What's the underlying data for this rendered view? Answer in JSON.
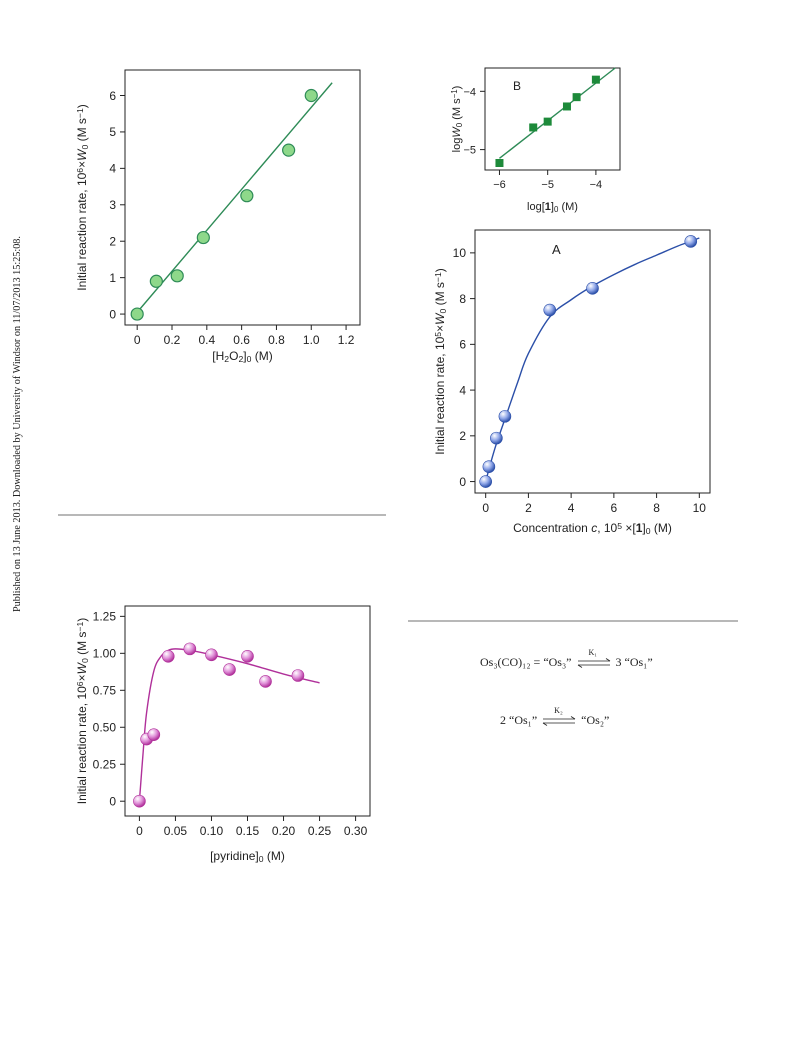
{
  "page": {
    "sidebar_text": "Published on 13 June 2013. Downloaded by University of Windsor on 11/07/2013 15:25:08."
  },
  "colors": {
    "green_line": "#2e8b57",
    "green_marker": "#8ed88a",
    "green_square": "#1d8a3a",
    "blue_line": "#2b4fa8",
    "blue_marker": "#8fa6e8",
    "pink_line": "#b0309a",
    "pink_marker": "#e090d8",
    "rule": "#b8b8b8"
  },
  "chart_data": [
    {
      "id": "h2o2",
      "type": "scatter",
      "title": "",
      "xlabel": "[H2O2]0 (M)",
      "ylabel": "Initial reaction rate, 10⁶×W₀ (M s⁻¹)",
      "xlim": [
        -0.07,
        1.28
      ],
      "ylim": [
        -0.3,
        6.7
      ],
      "xticks": [
        0,
        0.2,
        0.4,
        0.6,
        0.8,
        1.0,
        1.2
      ],
      "xtick_labels": [
        "0",
        "0.2",
        "0.4",
        "0.6",
        "0.8",
        "1.0",
        "1.2"
      ],
      "yticks": [
        0,
        1,
        2,
        3,
        4,
        5,
        6
      ],
      "ytick_labels": [
        "0",
        "1",
        "2",
        "3",
        "4",
        "5",
        "6"
      ],
      "x": [
        0,
        0.11,
        0.23,
        0.38,
        0.63,
        0.87,
        1.0
      ],
      "y": [
        0,
        0.9,
        1.05,
        2.1,
        3.25,
        4.5,
        6.0
      ],
      "fit_line": {
        "x": [
          0,
          1.12
        ],
        "y": [
          0.05,
          6.35
        ]
      },
      "grid": false
    },
    {
      "id": "logplot",
      "type": "scatter",
      "panel_label": "B",
      "xlabel": "log[1]0 (M)",
      "ylabel": "logW0 (M s⁻¹)",
      "xlim": [
        -6.3,
        -3.5
      ],
      "ylim": [
        -5.35,
        -3.6
      ],
      "xticks": [
        -6,
        -5,
        -4
      ],
      "xtick_labels": [
        "−6",
        "−5",
        "−4"
      ],
      "yticks": [
        -5,
        -4
      ],
      "ytick_labels": [
        "−5",
        "−4"
      ],
      "x": [
        -6.0,
        -5.3,
        -5.0,
        -4.6,
        -4.4,
        -4.0
      ],
      "y": [
        -5.23,
        -4.62,
        -4.52,
        -4.26,
        -4.1,
        -3.8
      ],
      "fit_line": {
        "x": [
          -6.0,
          -3.6
        ],
        "y": [
          -5.15,
          -3.6
        ]
      },
      "grid": false
    },
    {
      "id": "concentration",
      "type": "scatter",
      "panel_label": "A",
      "xlabel": "Concentration c, 10⁵ ×[1]0 (M)",
      "ylabel": "Initial reaction rate, 10⁵×W₀ (M s⁻¹)",
      "xlim": [
        -0.5,
        10.5
      ],
      "ylim": [
        -0.5,
        11.0
      ],
      "xticks": [
        0,
        2,
        4,
        6,
        8,
        10
      ],
      "xtick_labels": [
        "0",
        "2",
        "4",
        "6",
        "8",
        "10"
      ],
      "yticks": [
        0,
        2,
        4,
        6,
        8,
        10
      ],
      "ytick_labels": [
        "0",
        "2",
        "4",
        "6",
        "8",
        "10"
      ],
      "x": [
        0,
        0.15,
        0.5,
        0.9,
        3.0,
        5.0,
        9.6
      ],
      "y": [
        0,
        0.65,
        1.9,
        2.85,
        7.5,
        8.45,
        10.5
      ],
      "fit_curve": {
        "x": [
          0,
          0.2,
          0.5,
          1.0,
          1.5,
          2.0,
          3.0,
          4.0,
          5.0,
          6.0,
          7.0,
          8.0,
          9.0,
          10.0
        ],
        "y": [
          0,
          0.7,
          1.65,
          3.0,
          4.35,
          5.6,
          7.2,
          7.95,
          8.55,
          9.05,
          9.5,
          9.9,
          10.3,
          10.65
        ]
      },
      "grid": false
    },
    {
      "id": "pyridine",
      "type": "scatter",
      "title": "",
      "xlabel": "[pyridine]0 (M)",
      "ylabel": "Initial reaction rate, 10⁶×W₀ (M s⁻¹)",
      "xlim": [
        -0.02,
        0.32
      ],
      "ylim": [
        -0.1,
        1.32
      ],
      "xticks": [
        0,
        0.05,
        0.1,
        0.15,
        0.2,
        0.25,
        0.3
      ],
      "xtick_labels": [
        "0",
        "0.05",
        "0.10",
        "0.15",
        "0.20",
        "0.25",
        "0.30"
      ],
      "yticks": [
        0,
        0.25,
        0.5,
        0.75,
        1.0,
        1.25
      ],
      "ytick_labels": [
        "0",
        "0.25",
        "0.50",
        "0.75",
        "1.00",
        "1.25"
      ],
      "x": [
        0,
        0.01,
        0.02,
        0.04,
        0.07,
        0.1,
        0.125,
        0.15,
        0.175,
        0.22
      ],
      "y": [
        0,
        0.42,
        0.45,
        0.98,
        1.03,
        0.99,
        0.89,
        0.98,
        0.81,
        0.85
      ],
      "fit_curve": {
        "x": [
          0,
          0.005,
          0.01,
          0.02,
          0.03,
          0.04,
          0.05,
          0.07,
          0.1,
          0.15,
          0.2,
          0.25
        ],
        "y": [
          0,
          0.32,
          0.6,
          0.88,
          0.98,
          1.02,
          1.03,
          1.02,
          0.99,
          0.93,
          0.86,
          0.8
        ]
      },
      "grid": false
    }
  ],
  "equations": {
    "eq1": {
      "lhs": "Os₃(CO)₁₂ = “Os₃”",
      "k": "K₁",
      "rhs": "3 “Os₁”"
    },
    "eq2": {
      "lhs": "2 “Os₁”",
      "k": "K₂",
      "rhs": "“Os₂”"
    }
  }
}
